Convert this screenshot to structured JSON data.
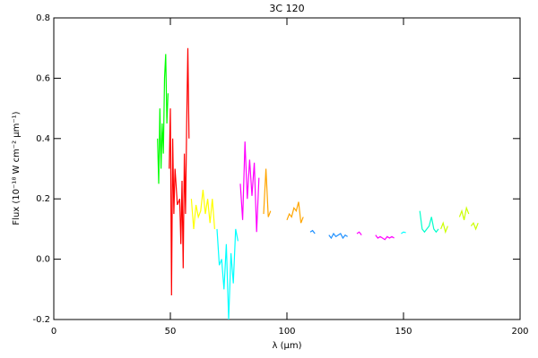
{
  "chart_data": {
    "type": "line",
    "title": "3C 120",
    "x_label": "λ (μm)",
    "y_label": "Flux (10⁻¹⁸ W cm⁻² μm⁻¹)",
    "xlim": [
      0,
      200
    ],
    "ylim": [
      -0.2,
      0.8
    ],
    "xticks": [
      0,
      50,
      100,
      150,
      200
    ],
    "yticks": [
      -0.2,
      {
        "value": 0,
        "label": "0.0"
      },
      0.2,
      0.4,
      0.6,
      0.8
    ],
    "series": [
      {
        "color": "#00ff00",
        "x": [
          44.5,
          45,
          45.5,
          46,
          46.5,
          47,
          47.5,
          48,
          48.5,
          49
        ],
        "values": [
          0.4,
          0.25,
          0.5,
          0.3,
          0.45,
          0.35,
          0.6,
          0.68,
          0.45,
          0.55
        ]
      },
      {
        "color": "#ff0000",
        "x": [
          49.5,
          50,
          50.5,
          51,
          51.5,
          52,
          53,
          54,
          54.5,
          55,
          55.5,
          56,
          56.5,
          57,
          57.5,
          58
        ],
        "values": [
          0.3,
          0.5,
          -0.12,
          0.4,
          0.15,
          0.3,
          0.18,
          0.2,
          0.05,
          0.26,
          -0.03,
          0.35,
          0.15,
          0.45,
          0.7,
          0.4
        ]
      },
      {
        "color": "#ffff00",
        "x": [
          59,
          60,
          61,
          62,
          63,
          64,
          65,
          66,
          67,
          68,
          69
        ],
        "values": [
          0.2,
          0.1,
          0.18,
          0.14,
          0.16,
          0.23,
          0.15,
          0.2,
          0.12,
          0.2,
          0.1
        ]
      },
      {
        "color": "#00ffff",
        "x": [
          70,
          71,
          72,
          73,
          74,
          75,
          76,
          77,
          78,
          79
        ],
        "values": [
          0.1,
          -0.02,
          0.0,
          -0.1,
          0.05,
          -0.2,
          0.02,
          -0.08,
          0.1,
          0.06
        ]
      },
      {
        "color": "#ff00ff",
        "x": [
          80,
          81,
          82,
          83,
          84,
          85,
          86,
          87,
          88
        ],
        "values": [
          0.25,
          0.13,
          0.39,
          0.2,
          0.33,
          0.21,
          0.32,
          0.09,
          0.27
        ]
      },
      {
        "color": "#ffa500",
        "x": [
          90,
          91,
          92,
          93
        ],
        "values": [
          0.15,
          0.3,
          0.14,
          0.16
        ]
      },
      {
        "color": "#ffa500",
        "x": [
          100,
          101,
          102,
          103,
          104,
          105,
          106,
          107
        ],
        "values": [
          0.13,
          0.15,
          0.14,
          0.17,
          0.16,
          0.19,
          0.12,
          0.14
        ]
      },
      {
        "color": "#1e90ff",
        "x": [
          110,
          111,
          112
        ],
        "values": [
          0.09,
          0.095,
          0.085
        ]
      },
      {
        "color": "#1e90ff",
        "x": [
          118,
          119,
          120,
          121,
          122,
          123,
          124,
          125,
          126
        ],
        "values": [
          0.08,
          0.07,
          0.085,
          0.075,
          0.08,
          0.085,
          0.07,
          0.08,
          0.075
        ]
      },
      {
        "color": "#ff00ff",
        "x": [
          130,
          131,
          132
        ],
        "values": [
          0.085,
          0.09,
          0.08
        ]
      },
      {
        "color": "#ff00ff",
        "x": [
          138,
          139,
          140,
          141,
          142,
          143,
          144,
          145,
          146
        ],
        "values": [
          0.08,
          0.07,
          0.075,
          0.07,
          0.065,
          0.075,
          0.07,
          0.075,
          0.07
        ]
      },
      {
        "color": "#00ffff",
        "x": [
          149,
          150,
          151
        ],
        "values": [
          0.085,
          0.09,
          0.088
        ]
      },
      {
        "color": "#00ffcc",
        "x": [
          157,
          158,
          159,
          160,
          161,
          162,
          163,
          164,
          165
        ],
        "values": [
          0.16,
          0.1,
          0.09,
          0.1,
          0.11,
          0.14,
          0.1,
          0.09,
          0.1
        ]
      },
      {
        "color": "#ccff00",
        "x": [
          166,
          167,
          168,
          169
        ],
        "values": [
          0.1,
          0.12,
          0.09,
          0.11
        ]
      },
      {
        "color": "#ccff00",
        "x": [
          174,
          175,
          176,
          177,
          178
        ],
        "values": [
          0.14,
          0.16,
          0.13,
          0.17,
          0.15
        ]
      },
      {
        "color": "#ccff00",
        "x": [
          179,
          180,
          181,
          182
        ],
        "values": [
          0.11,
          0.12,
          0.1,
          0.12
        ]
      }
    ]
  }
}
